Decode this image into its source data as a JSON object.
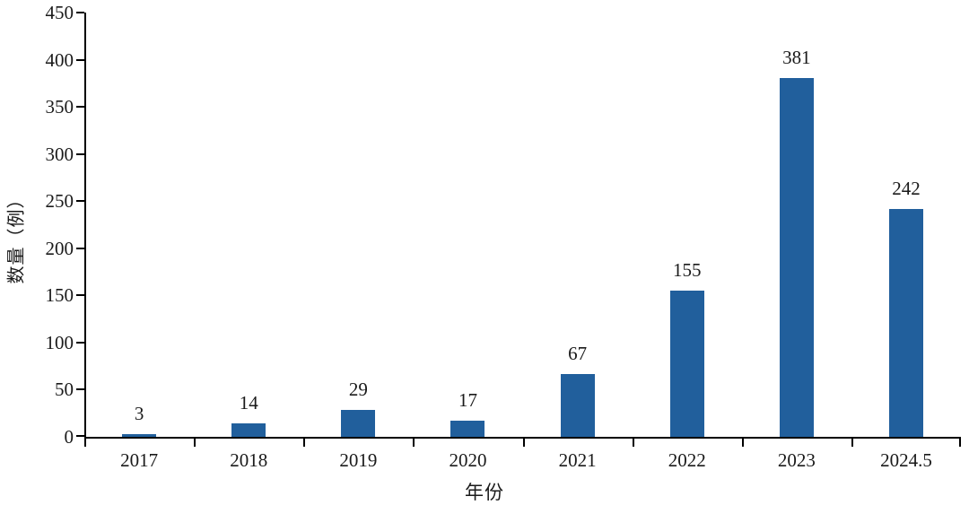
{
  "chart_data": {
    "type": "bar",
    "title": "",
    "categories": [
      "2017",
      "2018",
      "2019",
      "2020",
      "2021",
      "2022",
      "2023",
      "2024.5"
    ],
    "values": [
      3,
      14,
      29,
      17,
      67,
      155,
      381,
      242
    ],
    "xlabel": "年份",
    "ylabel": "数量（例）",
    "ylim": [
      0,
      450
    ],
    "yticks": [
      0,
      50,
      100,
      150,
      200,
      250,
      300,
      350,
      400,
      450
    ],
    "grid": false,
    "legend_position": "none",
    "bar_color": "#215f9c",
    "axis_color": "#000000",
    "text_color": "#1a1a1a"
  }
}
